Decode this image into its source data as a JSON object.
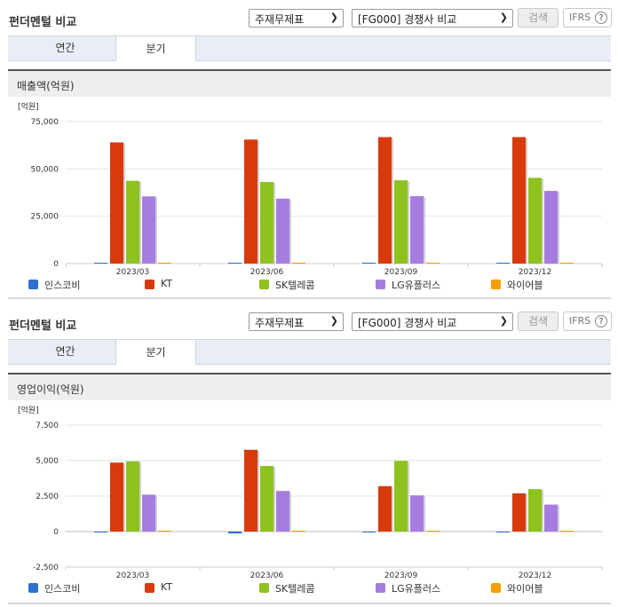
{
  "panels": [
    {
      "title": "펀더멘털 비교",
      "select_sort": "주재무제표",
      "select_group": "[FG000] 경쟁사 비교",
      "search_label": "검색",
      "ifrs_label": "IFRS",
      "help_label": "?",
      "tabs": [
        {
          "label": "연간"
        },
        {
          "label": "분기"
        }
      ],
      "active_tab": "분기",
      "metric_label": "매출액(억원)"
    },
    {
      "title": "펀더멘털 비교",
      "select_sort": "주재무제표",
      "select_group": "[FG000] 경쟁사 비교",
      "search_label": "검색",
      "ifrs_label": "IFRS",
      "help_label": "?",
      "tabs": [
        {
          "label": "연간"
        },
        {
          "label": "분기"
        }
      ],
      "active_tab": "분기",
      "metric_label": "영업이익(억원)"
    }
  ],
  "chart_data": [
    {
      "type": "bar",
      "unit_label": "[억원]",
      "categories": [
        "2023/03",
        "2023/06",
        "2023/09",
        "2023/12"
      ],
      "ylim": [
        0,
        75000
      ],
      "yticks": [
        0,
        25000,
        50000,
        75000
      ],
      "ytick_labels": [
        "0",
        "25,000",
        "50,000",
        "75,000"
      ],
      "grid": true,
      "legend_position": "bottom",
      "series": [
        {
          "name": "인스코비",
          "color": "#2f6fd0",
          "values": [
            60,
            60,
            80,
            70
          ]
        },
        {
          "name": "KT",
          "color": "#d83a0c",
          "values": [
            64000,
            65500,
            66800,
            66800
          ]
        },
        {
          "name": "SK텔레콤",
          "color": "#8dc21f",
          "values": [
            43700,
            43100,
            44000,
            45300
          ]
        },
        {
          "name": "LG유플러스",
          "color": "#a57de0",
          "values": [
            35500,
            34300,
            35600,
            38400
          ]
        },
        {
          "name": "와이어블",
          "color": "#f5a000",
          "values": [
            250,
            250,
            250,
            250
          ]
        }
      ]
    },
    {
      "type": "bar",
      "unit_label": "[억원]",
      "categories": [
        "2023/03",
        "2023/06",
        "2023/09",
        "2023/12"
      ],
      "ylim": [
        -2500,
        7500
      ],
      "yticks": [
        -2500,
        0,
        2500,
        5000,
        7500
      ],
      "ytick_labels": [
        "-2,500",
        "0",
        "2,500",
        "5,000",
        "7,500"
      ],
      "grid": true,
      "legend_position": "bottom",
      "series": [
        {
          "name": "인스코비",
          "color": "#2f6fd0",
          "values": [
            -20,
            -130,
            -30,
            -20
          ]
        },
        {
          "name": "KT",
          "color": "#d83a0c",
          "values": [
            4860,
            5760,
            3200,
            2690
          ]
        },
        {
          "name": "SK텔레콤",
          "color": "#8dc21f",
          "values": [
            4950,
            4620,
            4980,
            2990
          ]
        },
        {
          "name": "LG유플러스",
          "color": "#a57de0",
          "values": [
            2600,
            2860,
            2550,
            1900
          ]
        },
        {
          "name": "와이어블",
          "color": "#f5a000",
          "values": [
            10,
            10,
            10,
            10
          ]
        }
      ]
    }
  ]
}
